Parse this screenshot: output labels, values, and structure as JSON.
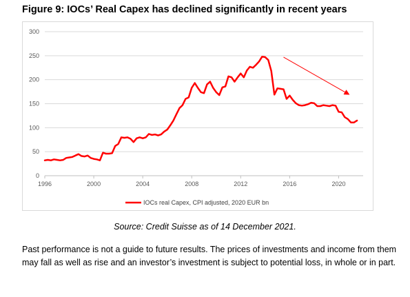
{
  "figure": {
    "title": "Figure 9: IOCs’ Real Capex has declined significantly in recent years",
    "source": "Source: Credit Suisse as of 14 December 2021.",
    "disclaimer": "Past performance is not a guide to future results. The prices of investments and income from them may fall as well as rise and an investor’s investment is subject to potential loss, in whole or in part."
  },
  "chart_data": {
    "type": "line",
    "title": "",
    "xlabel": "",
    "ylabel": "",
    "xlim": [
      1996,
      2022
    ],
    "ylim": [
      0,
      300
    ],
    "x_ticks": [
      1996,
      2000,
      2004,
      2008,
      2012,
      2016,
      2020
    ],
    "y_ticks": [
      0,
      50,
      100,
      150,
      200,
      250,
      300
    ],
    "grid": "horizontal",
    "legend_position": "bottom",
    "series": [
      {
        "name": "IOCs real Capex, CPI adjusted, 2020 EUR bn",
        "color": "#ff0000",
        "x": [
          1996.0,
          1996.25,
          1996.5,
          1996.75,
          1997.0,
          1997.25,
          1997.5,
          1997.75,
          1998.0,
          1998.25,
          1998.5,
          1998.75,
          1999.0,
          1999.25,
          1999.5,
          1999.75,
          2000.0,
          2000.25,
          2000.5,
          2000.75,
          2001.0,
          2001.25,
          2001.5,
          2001.75,
          2002.0,
          2002.25,
          2002.5,
          2002.75,
          2003.0,
          2003.25,
          2003.5,
          2003.75,
          2004.0,
          2004.25,
          2004.5,
          2004.75,
          2005.0,
          2005.25,
          2005.5,
          2005.75,
          2006.0,
          2006.25,
          2006.5,
          2006.75,
          2007.0,
          2007.25,
          2007.5,
          2007.75,
          2008.0,
          2008.25,
          2008.5,
          2008.75,
          2009.0,
          2009.25,
          2009.5,
          2009.75,
          2010.0,
          2010.25,
          2010.5,
          2010.75,
          2011.0,
          2011.25,
          2011.5,
          2011.75,
          2012.0,
          2012.25,
          2012.5,
          2012.75,
          2013.0,
          2013.25,
          2013.5,
          2013.75,
          2014.0,
          2014.25,
          2014.5,
          2014.75,
          2015.0,
          2015.25,
          2015.5,
          2015.75,
          2016.0,
          2016.25,
          2016.5,
          2016.75,
          2017.0,
          2017.25,
          2017.5,
          2017.75,
          2018.0,
          2018.25,
          2018.5,
          2018.75,
          2019.0,
          2019.25,
          2019.5,
          2019.75,
          2020.0,
          2020.25,
          2020.5,
          2020.75,
          2021.0,
          2021.25,
          2021.5
        ],
        "values": [
          32,
          33,
          32,
          34,
          33,
          32,
          33,
          37,
          38,
          39,
          42,
          45,
          41,
          40,
          42,
          37,
          35,
          34,
          32,
          48,
          46,
          46,
          47,
          62,
          66,
          80,
          79,
          80,
          77,
          70,
          78,
          80,
          78,
          80,
          87,
          85,
          86,
          84,
          86,
          92,
          96,
          105,
          115,
          128,
          141,
          147,
          160,
          163,
          183,
          193,
          183,
          174,
          172,
          190,
          196,
          183,
          174,
          168,
          184,
          186,
          207,
          205,
          196,
          205,
          213,
          205,
          219,
          227,
          225,
          231,
          238,
          248,
          247,
          241,
          218,
          169,
          182,
          181,
          180,
          160,
          167,
          158,
          151,
          147,
          146,
          147,
          149,
          152,
          151,
          145,
          145,
          147,
          146,
          145,
          147,
          146,
          133,
          132,
          122,
          118,
          111,
          111,
          115
        ]
      }
    ],
    "annotations": [
      {
        "type": "arrow",
        "color": "#ff0000",
        "from": [
          2015.5,
          247
        ],
        "to": [
          2020.8,
          170
        ]
      }
    ]
  }
}
